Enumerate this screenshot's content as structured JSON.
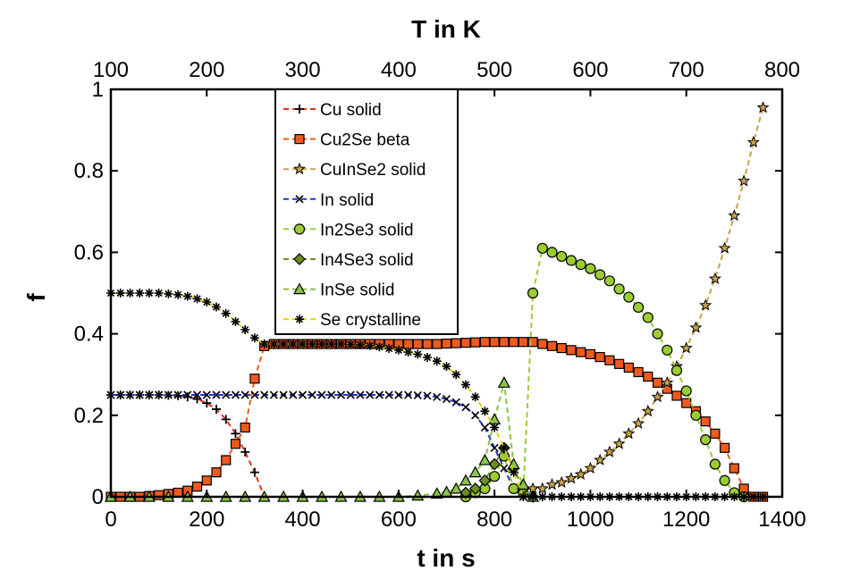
{
  "chart_data": {
    "type": "line",
    "xlabel": "t in s",
    "ylabel": "f",
    "top_xlabel": "T in K",
    "xlim": [
      0,
      1400
    ],
    "ylim": [
      0,
      1
    ],
    "top_xlim": [
      100,
      800
    ],
    "x_ticks": [
      "0",
      "200",
      "400",
      "600",
      "800",
      "1000",
      "1200",
      "1400"
    ],
    "y_ticks": [
      "0",
      "0.2",
      "0.4",
      "0.6",
      "0.8",
      "1"
    ],
    "top_x_ticks": [
      "100",
      "200",
      "300",
      "400",
      "500",
      "600",
      "700",
      "800"
    ],
    "grid": false,
    "legend_position": "top-left-center",
    "series": [
      {
        "name": "Cu solid",
        "color": "#e8331a",
        "marker": "plus",
        "x": [
          0,
          20,
          40,
          60,
          80,
          100,
          120,
          140,
          160,
          180,
          200,
          220,
          240,
          260,
          280,
          300,
          320
        ],
        "y": [
          0.25,
          0.25,
          0.25,
          0.25,
          0.25,
          0.25,
          0.249,
          0.248,
          0.245,
          0.24,
          0.23,
          0.215,
          0.19,
          0.155,
          0.11,
          0.06,
          0.0
        ]
      },
      {
        "name": "Cu2Se beta",
        "color": "#ee5a1e",
        "marker": "square",
        "x": [
          0,
          20,
          40,
          60,
          80,
          100,
          120,
          140,
          160,
          180,
          200,
          220,
          240,
          260,
          280,
          300,
          320,
          340,
          360,
          380,
          400,
          420,
          440,
          460,
          480,
          500,
          520,
          540,
          560,
          580,
          600,
          620,
          640,
          660,
          680,
          700,
          720,
          740,
          760,
          780,
          800,
          820,
          840,
          860,
          880,
          900,
          920,
          940,
          960,
          980,
          1000,
          1020,
          1040,
          1060,
          1080,
          1100,
          1120,
          1140,
          1160,
          1180,
          1200,
          1220,
          1240,
          1260,
          1280,
          1300,
          1320,
          1340,
          1360
        ],
        "y": [
          0,
          0,
          0,
          0,
          0.002,
          0.004,
          0.007,
          0.01,
          0.015,
          0.025,
          0.04,
          0.06,
          0.09,
          0.13,
          0.17,
          0.29,
          0.37,
          0.375,
          0.375,
          0.375,
          0.375,
          0.375,
          0.375,
          0.375,
          0.375,
          0.375,
          0.375,
          0.375,
          0.375,
          0.375,
          0.375,
          0.375,
          0.375,
          0.375,
          0.375,
          0.376,
          0.377,
          0.378,
          0.379,
          0.38,
          0.38,
          0.38,
          0.38,
          0.38,
          0.38,
          0.375,
          0.37,
          0.365,
          0.36,
          0.355,
          0.35,
          0.343,
          0.335,
          0.326,
          0.317,
          0.306,
          0.295,
          0.28,
          0.265,
          0.248,
          0.23,
          0.21,
          0.185,
          0.155,
          0.12,
          0.07,
          0.02,
          0.0,
          0.0
        ]
      },
      {
        "name": "CuInSe2 solid",
        "color": "#c8a24a",
        "marker": "star",
        "x": [
          860,
          880,
          900,
          920,
          940,
          960,
          980,
          1000,
          1020,
          1040,
          1060,
          1080,
          1100,
          1120,
          1140,
          1160,
          1180,
          1200,
          1220,
          1240,
          1260,
          1280,
          1300,
          1320,
          1340,
          1360
        ],
        "y": [
          0.02,
          0.02,
          0.02,
          0.03,
          0.035,
          0.045,
          0.055,
          0.07,
          0.09,
          0.11,
          0.13,
          0.155,
          0.18,
          0.21,
          0.245,
          0.28,
          0.32,
          0.365,
          0.415,
          0.47,
          0.535,
          0.61,
          0.69,
          0.775,
          0.87,
          0.955
        ]
      },
      {
        "name": "In solid",
        "color": "#2233cc",
        "marker": "cross",
        "x": [
          0,
          20,
          40,
          60,
          80,
          100,
          120,
          140,
          160,
          180,
          200,
          220,
          240,
          260,
          280,
          300,
          320,
          340,
          360,
          380,
          400,
          420,
          440,
          460,
          480,
          500,
          520,
          540,
          560,
          580,
          600,
          620,
          640,
          660,
          680,
          700,
          720,
          740,
          760,
          780,
          800,
          820,
          840,
          860
        ],
        "y": [
          0.25,
          0.25,
          0.25,
          0.25,
          0.25,
          0.25,
          0.25,
          0.25,
          0.25,
          0.25,
          0.25,
          0.25,
          0.25,
          0.25,
          0.25,
          0.25,
          0.25,
          0.25,
          0.25,
          0.25,
          0.25,
          0.25,
          0.25,
          0.25,
          0.25,
          0.25,
          0.25,
          0.25,
          0.25,
          0.25,
          0.25,
          0.25,
          0.249,
          0.248,
          0.245,
          0.24,
          0.232,
          0.22,
          0.2,
          0.17,
          0.12,
          0.07,
          0.02,
          0.0
        ]
      },
      {
        "name": "In2Se3 solid",
        "color": "#9acd32",
        "marker": "circle",
        "x": [
          740,
          760,
          780,
          800,
          820,
          840,
          860,
          880,
          900,
          920,
          940,
          960,
          980,
          1000,
          1020,
          1040,
          1060,
          1080,
          1100,
          1120,
          1140,
          1160,
          1180,
          1200,
          1220,
          1240,
          1260,
          1280,
          1300,
          1320
        ],
        "y": [
          0.0,
          0.01,
          0.02,
          0.05,
          0.1,
          0.02,
          0.01,
          0.5,
          0.61,
          0.6,
          0.59,
          0.58,
          0.57,
          0.56,
          0.545,
          0.53,
          0.51,
          0.49,
          0.465,
          0.44,
          0.4,
          0.36,
          0.31,
          0.26,
          0.2,
          0.14,
          0.08,
          0.04,
          0.01,
          0.0
        ]
      },
      {
        "name": "In4Se3 solid",
        "color": "#6b8e23",
        "marker": "diamond",
        "x": [
          740,
          760,
          780,
          800,
          820,
          840,
          860,
          880
        ],
        "y": [
          0.01,
          0.02,
          0.04,
          0.08,
          0.12,
          0.07,
          0.02,
          0.0
        ]
      },
      {
        "name": "InSe solid",
        "color": "#8bc34a",
        "marker": "triangle",
        "x": [
          0,
          40,
          80,
          120,
          160,
          200,
          240,
          280,
          320,
          360,
          400,
          440,
          480,
          520,
          560,
          600,
          640,
          680,
          700,
          720,
          740,
          760,
          780,
          800,
          820,
          840,
          860,
          880
        ],
        "y": [
          0,
          0,
          0,
          0,
          0,
          0,
          0,
          0,
          0,
          0,
          0,
          0,
          0,
          0,
          0,
          0,
          0.003,
          0.008,
          0.012,
          0.02,
          0.04,
          0.06,
          0.09,
          0.19,
          0.28,
          0.08,
          0.03,
          0.0
        ]
      },
      {
        "name": "Se crystalline",
        "color": "#e5d300",
        "marker": "asterisk",
        "x": [
          0,
          20,
          40,
          60,
          80,
          100,
          120,
          140,
          160,
          180,
          200,
          220,
          240,
          260,
          280,
          300,
          320,
          340,
          360,
          380,
          400,
          420,
          440,
          460,
          480,
          500,
          520,
          540,
          560,
          580,
          600,
          620,
          640,
          660,
          680,
          700,
          720,
          740,
          760,
          780,
          800,
          820,
          840,
          860,
          880,
          900,
          920,
          940,
          960,
          980,
          1000,
          1020,
          1040,
          1060,
          1080,
          1100,
          1120,
          1140,
          1160,
          1180,
          1200,
          1220,
          1240,
          1260,
          1280,
          1300,
          1320,
          1340,
          1360
        ],
        "y": [
          0.5,
          0.5,
          0.5,
          0.5,
          0.5,
          0.5,
          0.498,
          0.496,
          0.492,
          0.486,
          0.478,
          0.466,
          0.45,
          0.43,
          0.41,
          0.39,
          0.375,
          0.375,
          0.375,
          0.375,
          0.375,
          0.375,
          0.375,
          0.375,
          0.375,
          0.374,
          0.373,
          0.371,
          0.368,
          0.364,
          0.36,
          0.355,
          0.35,
          0.342,
          0.333,
          0.32,
          0.3,
          0.275,
          0.245,
          0.21,
          0.17,
          0.12,
          0.06,
          0.0,
          0.0,
          0.0,
          0.0,
          0.0,
          0.0,
          0.0,
          0.0,
          0.0,
          0.0,
          0.0,
          0.0,
          0.0,
          0.0,
          0.0,
          0.0,
          0.0,
          0.0,
          0.0,
          0.0,
          0.0,
          0.0,
          0.0,
          0.0,
          0.0,
          0.0
        ]
      }
    ]
  }
}
